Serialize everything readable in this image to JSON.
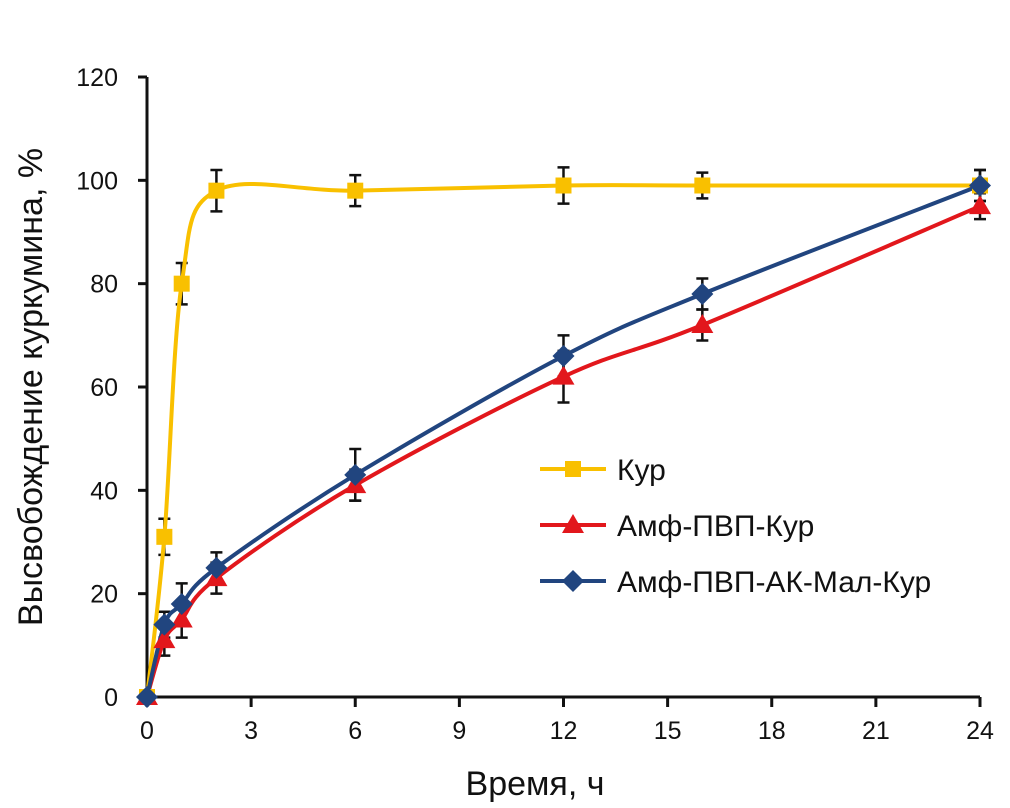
{
  "chart_data": {
    "type": "line",
    "title": "",
    "xlabel": "Время, ч",
    "ylabel": "Высвобождение куркумина, %",
    "xlim": [
      0,
      24
    ],
    "ylim": [
      0,
      120
    ],
    "xticks": [
      0,
      3,
      6,
      9,
      12,
      15,
      18,
      21,
      24
    ],
    "yticks": [
      0,
      20,
      40,
      60,
      80,
      100,
      120
    ],
    "grid": false,
    "legend_position": "center-right",
    "x": [
      0,
      0.5,
      1,
      2,
      6,
      12,
      16,
      24
    ],
    "series": [
      {
        "name": "Кур",
        "color": "#F9C000",
        "marker": "square",
        "values": [
          0,
          31,
          80,
          98,
          98,
          99,
          99,
          99
        ],
        "errors": [
          0,
          3.5,
          4,
          4,
          3,
          3.5,
          2.5,
          3
        ]
      },
      {
        "name": "Амф-ПВП-Кур",
        "color": "#E2171C",
        "marker": "triangle",
        "values": [
          0,
          11,
          15,
          23,
          41,
          62,
          72,
          95
        ],
        "errors": [
          0,
          3,
          3.5,
          3,
          3,
          5,
          3,
          2.5
        ]
      },
      {
        "name": "Амф-ПВП-АК-Мал-Кур",
        "color": "#21457F",
        "marker": "diamond",
        "values": [
          0,
          14,
          18,
          25,
          43,
          66,
          78,
          99
        ],
        "errors": [
          0,
          2.5,
          4,
          3,
          5,
          4,
          3,
          3
        ]
      }
    ]
  }
}
